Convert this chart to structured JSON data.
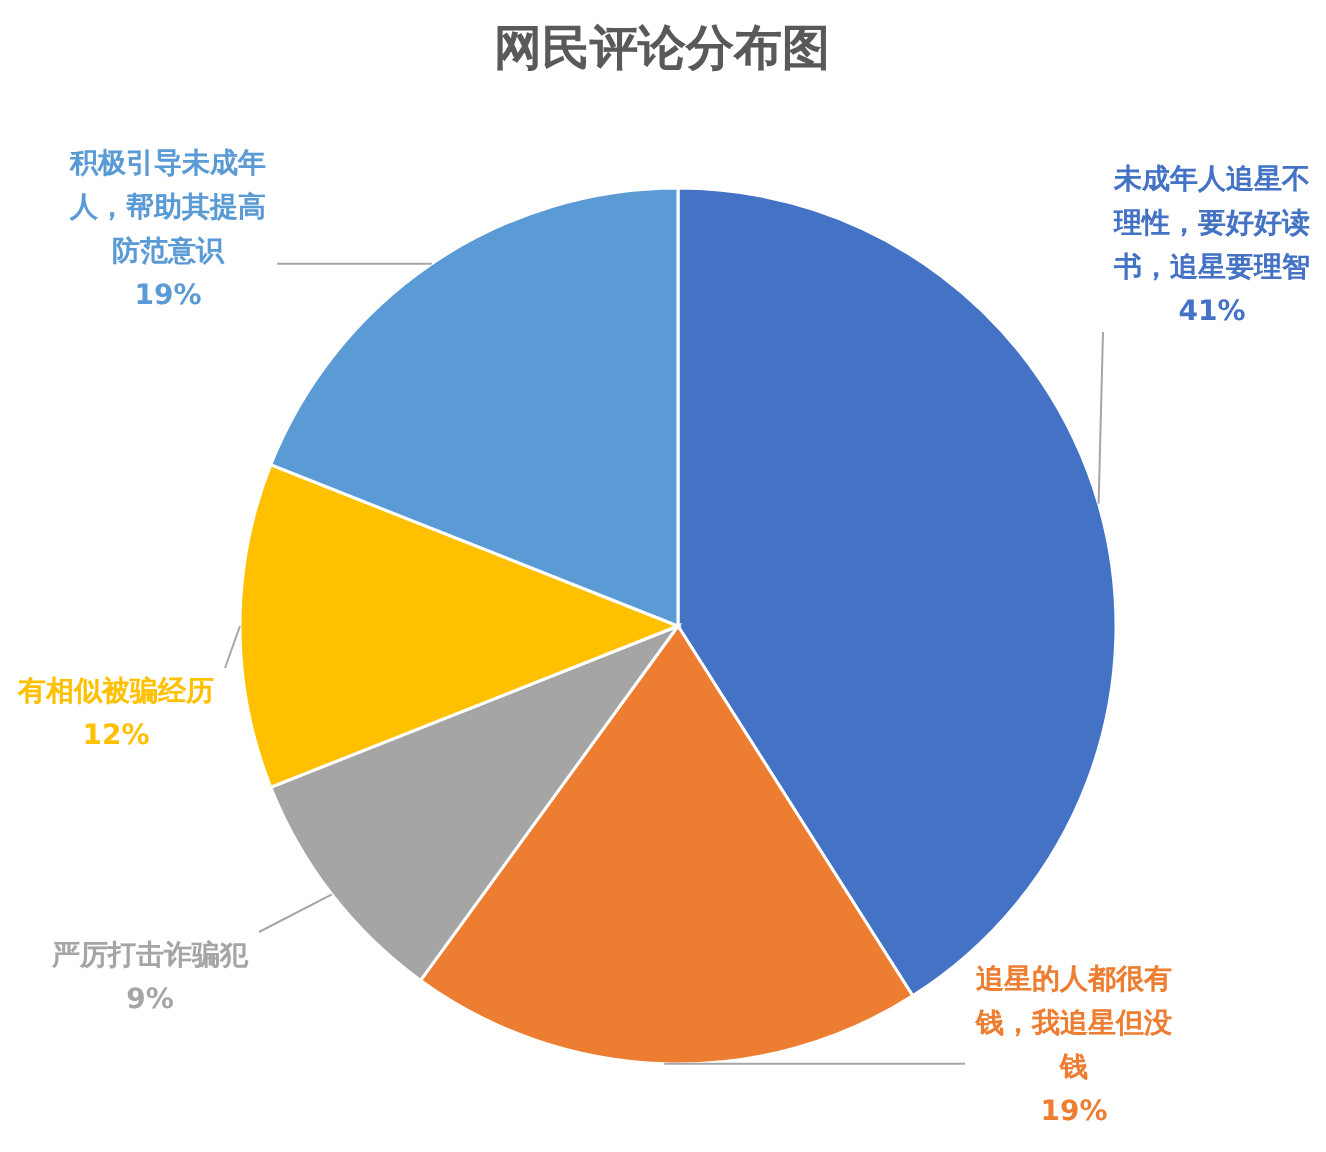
{
  "chart_data": {
    "type": "pie",
    "title": "网民评论分布图",
    "categories": [
      "未成年人追星不理性，要好好读书，追星要理智",
      "追星的人都很有钱，我追星但没钱",
      "严厉打击诈骗犯",
      "有相似被骗经历",
      "积极引导未成年人，帮助其提高防范意识"
    ],
    "values": [
      41,
      19,
      9,
      12,
      19
    ],
    "colors": [
      "#4472c4",
      "#ed7d31",
      "#a5a5a5",
      "#ffc000",
      "#5b9bd5"
    ],
    "value_labels": [
      "41%",
      "19%",
      "9%",
      "12%",
      "19%"
    ]
  }
}
